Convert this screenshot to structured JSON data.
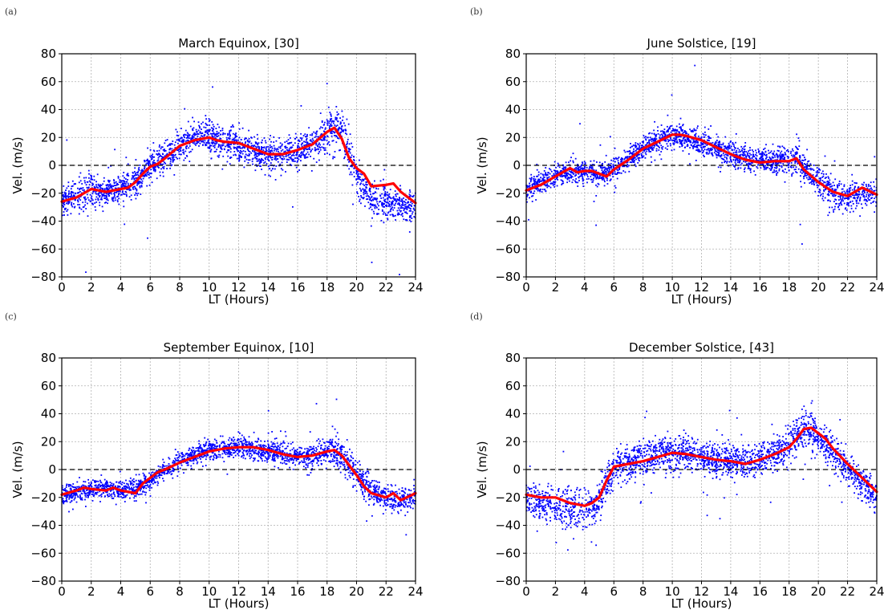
{
  "figure": {
    "panel_tags": [
      "(a)",
      "(b)",
      "(c)",
      "(d)"
    ]
  },
  "colors": {
    "scatter": "#0000ff",
    "mean_line": "#ff0000",
    "zero_line": "#000000",
    "grid": "#b0b0b0"
  },
  "chart_data": [
    {
      "type": "scatter",
      "title": "March Equinox, [30]",
      "xlabel": "LT (Hours)",
      "ylabel": "Vel. (m/s)",
      "xlim": [
        0,
        24
      ],
      "ylim": [
        -80,
        80
      ],
      "xticks": [
        0,
        2,
        4,
        6,
        8,
        10,
        12,
        14,
        16,
        18,
        20,
        22,
        24
      ],
      "yticks": [
        -80,
        -60,
        -40,
        -20,
        0,
        20,
        40,
        60,
        80
      ],
      "grid": true,
      "zero_line": true,
      "series": [
        {
          "kind": "scatter-envelope",
          "x": [
            0,
            1,
            2,
            3,
            4,
            5,
            5.5,
            6,
            7,
            8,
            9,
            10,
            11,
            12,
            13,
            14,
            15,
            16,
            17,
            18,
            18.5,
            19,
            19.5,
            20,
            20.5,
            21,
            22,
            23,
            24
          ],
          "center": [
            -25,
            -22,
            -18,
            -20,
            -16,
            -12,
            -6,
            0,
            6,
            14,
            20,
            21,
            17,
            14,
            10,
            7,
            8,
            11,
            14,
            22,
            28,
            25,
            8,
            -8,
            -18,
            -22,
            -27,
            -28,
            -32
          ],
          "spread": [
            10,
            10,
            12,
            8,
            8,
            9,
            9,
            9,
            10,
            10,
            10,
            11,
            11,
            10,
            10,
            10,
            10,
            10,
            10,
            12,
            14,
            14,
            14,
            12,
            12,
            12,
            11,
            11,
            10
          ]
        },
        {
          "kind": "mean-line",
          "x": [
            0,
            1,
            2,
            3,
            3.5,
            4,
            4.5,
            5,
            5.5,
            6,
            6.5,
            7,
            8,
            9,
            10,
            10.5,
            11,
            12,
            13,
            14,
            15,
            16,
            17,
            18,
            18.5,
            19,
            19.5,
            20,
            20.5,
            21,
            22,
            22.5,
            23,
            24
          ],
          "y": [
            -26,
            -23,
            -17,
            -19,
            -18,
            -17,
            -16,
            -12,
            -6,
            -1,
            1,
            5,
            14,
            18,
            20,
            18,
            17,
            16,
            12,
            8,
            8,
            11,
            15,
            24,
            27,
            19,
            5,
            -2,
            -6,
            -15,
            -14,
            -13,
            -19,
            -27
          ]
        }
      ]
    },
    {
      "type": "scatter",
      "title": "June Solstice, [19]",
      "xlabel": "LT (Hours)",
      "ylabel": "Vel. (m/s)",
      "xlim": [
        0,
        24
      ],
      "ylim": [
        -80,
        80
      ],
      "xticks": [
        0,
        2,
        4,
        6,
        8,
        10,
        12,
        14,
        16,
        18,
        20,
        22,
        24
      ],
      "yticks": [
        -80,
        -60,
        -40,
        -20,
        0,
        20,
        40,
        60,
        80
      ],
      "grid": true,
      "zero_line": true,
      "series": [
        {
          "kind": "scatter-envelope",
          "x": [
            0,
            1,
            2,
            3,
            4,
            5,
            6,
            7,
            8,
            9,
            10,
            11,
            12,
            13,
            14,
            15,
            16,
            17,
            18,
            18.5,
            19,
            20,
            21,
            22,
            23,
            24
          ],
          "center": [
            -18,
            -12,
            -8,
            -4,
            -5,
            -6,
            -3,
            5,
            12,
            18,
            22,
            20,
            16,
            12,
            8,
            5,
            3,
            3,
            4,
            6,
            -2,
            -12,
            -20,
            -22,
            -20,
            -20
          ],
          "spread": [
            7,
            7,
            7,
            7,
            7,
            7,
            7,
            7,
            8,
            8,
            8,
            8,
            8,
            8,
            8,
            8,
            8,
            8,
            10,
            12,
            10,
            10,
            10,
            9,
            9,
            8
          ]
        },
        {
          "kind": "mean-line",
          "x": [
            0,
            1,
            2,
            2.5,
            3,
            3.5,
            4,
            4.5,
            5,
            5.5,
            6,
            7,
            8,
            9,
            10,
            10.5,
            11,
            12,
            13,
            14,
            15,
            16,
            17,
            18,
            18.5,
            19,
            20,
            21,
            22,
            22.5,
            23,
            24
          ],
          "y": [
            -18,
            -14,
            -8,
            -5,
            -2,
            -5,
            -4,
            -4,
            -6,
            -8,
            -3,
            4,
            12,
            17,
            22,
            22,
            21,
            18,
            13,
            8,
            4,
            2,
            3,
            3,
            5,
            -3,
            -12,
            -19,
            -22,
            -19,
            -16,
            -21
          ]
        }
      ]
    },
    {
      "type": "scatter",
      "title": "September Equinox, [10]",
      "xlabel": "LT (Hours)",
      "ylabel": "Vel. (m/s)",
      "xlim": [
        0,
        24
      ],
      "ylim": [
        -80,
        80
      ],
      "xticks": [
        0,
        2,
        4,
        6,
        8,
        10,
        12,
        14,
        16,
        18,
        20,
        22,
        24
      ],
      "yticks": [
        -80,
        -60,
        -40,
        -20,
        0,
        20,
        40,
        60,
        80
      ],
      "grid": true,
      "zero_line": true,
      "series": [
        {
          "kind": "scatter-envelope",
          "x": [
            0,
            1,
            2,
            3,
            4,
            5,
            6,
            7,
            8,
            9,
            10,
            11,
            12,
            13,
            14,
            15,
            16,
            17,
            18,
            18.5,
            19,
            20,
            21,
            22,
            23,
            24
          ],
          "center": [
            -18,
            -16,
            -14,
            -14,
            -15,
            -14,
            -8,
            0,
            6,
            10,
            14,
            15,
            16,
            15,
            13,
            11,
            9,
            10,
            12,
            14,
            10,
            -4,
            -15,
            -20,
            -22,
            -20
          ],
          "spread": [
            6,
            6,
            6,
            6,
            6,
            6,
            6,
            6,
            7,
            7,
            7,
            7,
            7,
            7,
            7,
            7,
            7,
            8,
            10,
            12,
            10,
            10,
            9,
            8,
            8,
            7
          ]
        },
        {
          "kind": "mean-line",
          "x": [
            0,
            1,
            1.5,
            2,
            3,
            3.5,
            4,
            5,
            5.5,
            6,
            6.5,
            7,
            8,
            9,
            10,
            11,
            12,
            13,
            14,
            15,
            16,
            17,
            18,
            18.5,
            19,
            20,
            20.5,
            21,
            22,
            22.5,
            23,
            24
          ],
          "y": [
            -18,
            -15,
            -13,
            -14,
            -15,
            -13,
            -15,
            -17,
            -10,
            -6,
            -2,
            0,
            5,
            9,
            13,
            15,
            16,
            16,
            14,
            11,
            9,
            10,
            13,
            14,
            10,
            -4,
            -12,
            -17,
            -20,
            -17,
            -22,
            -17
          ]
        }
      ]
    },
    {
      "type": "scatter",
      "title": "December Solstice, [43]",
      "xlabel": "LT (Hours)",
      "ylabel": "Vel. (m/s)",
      "xlim": [
        0,
        24
      ],
      "ylim": [
        -80,
        80
      ],
      "xticks": [
        0,
        2,
        4,
        6,
        8,
        10,
        12,
        14,
        16,
        18,
        20,
        22,
        24
      ],
      "yticks": [
        -80,
        -60,
        -40,
        -20,
        0,
        20,
        40,
        60,
        80
      ],
      "grid": true,
      "zero_line": true,
      "series": [
        {
          "kind": "scatter-envelope",
          "x": [
            0,
            1,
            2,
            3,
            4,
            5,
            5.5,
            6,
            7,
            8,
            9,
            10,
            11,
            12,
            13,
            14,
            15,
            16,
            17,
            18,
            18.5,
            19,
            19.5,
            20,
            21,
            22,
            23,
            24
          ],
          "center": [
            -22,
            -24,
            -26,
            -28,
            -28,
            -24,
            -10,
            2,
            5,
            8,
            11,
            13,
            11,
            9,
            7,
            6,
            5,
            8,
            12,
            18,
            24,
            30,
            28,
            22,
            12,
            0,
            -10,
            -20
          ],
          "spread": [
            12,
            12,
            14,
            14,
            14,
            14,
            12,
            10,
            11,
            12,
            12,
            12,
            11,
            10,
            10,
            10,
            10,
            11,
            11,
            12,
            14,
            14,
            14,
            12,
            12,
            10,
            10,
            10
          ]
        },
        {
          "kind": "mean-line",
          "x": [
            0,
            1,
            2,
            3,
            3.5,
            4,
            4.5,
            5,
            5.5,
            6,
            7,
            8,
            9,
            10,
            11,
            12,
            13,
            14,
            15,
            16,
            17,
            18,
            18.5,
            19,
            19.5,
            20,
            20.5,
            21,
            22,
            23,
            24
          ],
          "y": [
            -18,
            -20,
            -20,
            -24,
            -25,
            -26,
            -24,
            -20,
            -8,
            2,
            4,
            6,
            9,
            12,
            11,
            9,
            7,
            6,
            4,
            7,
            11,
            16,
            22,
            29,
            30,
            26,
            22,
            15,
            4,
            -6,
            -16
          ]
        }
      ]
    }
  ]
}
